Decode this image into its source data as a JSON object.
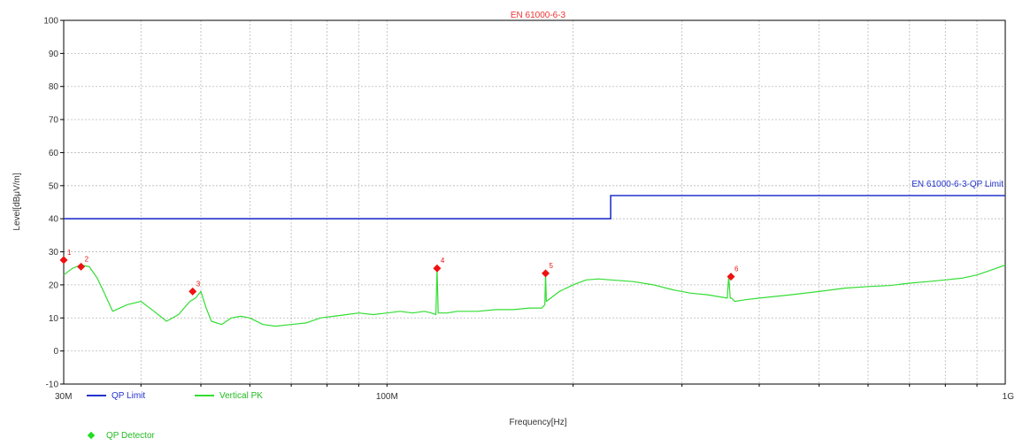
{
  "chart_data": {
    "type": "line",
    "title": "EN 61000-6-3",
    "xlabel": "Frequency[Hz]",
    "ylabel": "Level[dBμV/m]",
    "xscale": "log",
    "xlim": [
      30000000,
      1000000000
    ],
    "ylim": [
      -10,
      100
    ],
    "yticks": [
      -10,
      0,
      10,
      20,
      30,
      40,
      50,
      60,
      70,
      80,
      90,
      100
    ],
    "xtick_labels": [
      {
        "value": 30000000,
        "label": "30M"
      },
      {
        "value": 100000000,
        "label": "100M"
      },
      {
        "value": 1000000000,
        "label": "1G"
      }
    ],
    "grid": true,
    "colors": {
      "limit": "#2233cc",
      "peak": "#33dd33",
      "marker": "#ee1111",
      "title": "#ee3333",
      "detector": "#22dd22"
    },
    "limit_line": {
      "name": "QP Limit",
      "label": "EN 61000-6-3-QP Limit",
      "x": [
        30000000,
        230000000,
        230000000,
        1000000000
      ],
      "y": [
        40,
        40,
        47,
        47
      ]
    },
    "series": [
      {
        "name": "Vertical PK",
        "x": [
          30000000,
          31000000,
          32000000,
          33000000,
          34000000,
          35000000,
          36000000,
          38000000,
          40000000,
          42000000,
          44000000,
          46000000,
          48000000,
          49000000,
          50000000,
          51000000,
          52000000,
          54000000,
          56000000,
          58000000,
          60000000,
          63000000,
          66000000,
          70000000,
          74000000,
          78000000,
          82000000,
          86000000,
          90000000,
          95000000,
          100000000,
          105000000,
          110000000,
          115000000,
          118000000,
          120000000,
          120500000,
          121000000,
          125000000,
          130000000,
          140000000,
          150000000,
          160000000,
          170000000,
          178000000,
          180000000,
          180500000,
          181000000,
          190000000,
          200000000,
          210000000,
          220000000,
          230000000,
          250000000,
          270000000,
          290000000,
          310000000,
          330000000,
          350000000,
          355000000,
          357000000,
          359000000,
          361000000,
          363000000,
          365000000,
          380000000,
          400000000,
          450000000,
          500000000,
          550000000,
          600000000,
          650000000,
          700000000,
          750000000,
          800000000,
          850000000,
          900000000,
          950000000,
          1000000000
        ],
        "y": [
          23,
          25,
          26,
          25.5,
          22,
          17,
          12,
          14,
          15,
          12,
          9,
          11,
          15,
          16,
          18,
          13,
          9,
          8,
          10,
          10.5,
          10,
          8,
          7.5,
          8,
          8.5,
          10,
          10.5,
          11,
          11.5,
          11,
          11.5,
          12,
          11.5,
          12,
          11.5,
          11,
          25,
          11.5,
          11.5,
          12,
          12,
          12.5,
          12.5,
          13,
          13,
          14,
          23.5,
          15,
          18,
          20,
          21.5,
          21.8,
          21.5,
          21,
          20,
          18.5,
          17.5,
          17,
          16.2,
          16,
          22.5,
          16,
          16,
          15.5,
          15,
          15.5,
          16,
          17,
          18,
          19,
          19.5,
          19.8,
          20.5,
          21,
          21.5,
          22,
          23,
          24.5,
          26
        ]
      }
    ],
    "markers": [
      {
        "label": "1",
        "x": 30000000,
        "y": 27.5
      },
      {
        "label": "2",
        "x": 32000000,
        "y": 25.5
      },
      {
        "label": "3",
        "x": 48500000,
        "y": 18
      },
      {
        "label": "4",
        "x": 120500000,
        "y": 25
      },
      {
        "label": "5",
        "x": 180500000,
        "y": 23.5
      },
      {
        "label": "6",
        "x": 360000000,
        "y": 22.5
      }
    ],
    "legend": [
      {
        "label": "QP Limit",
        "style": "line",
        "color": "#2233cc"
      },
      {
        "label": "Vertical PK",
        "style": "line",
        "color": "#33dd33"
      },
      {
        "label": "QP Detector",
        "style": "marker",
        "color": "#22dd22"
      }
    ]
  }
}
